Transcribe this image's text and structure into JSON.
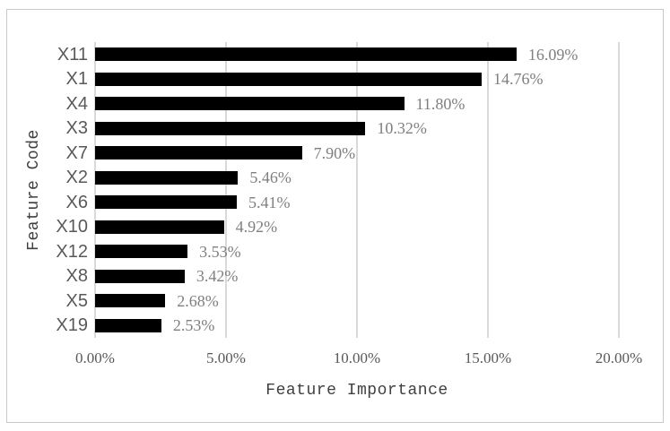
{
  "figure": {
    "background": "#ffffff",
    "border_color": "#c9c9c9"
  },
  "chart_data": {
    "type": "bar",
    "orientation": "horizontal",
    "title": "",
    "xlabel": "Feature Importance",
    "ylabel": "Feature Code",
    "categories": [
      "X11",
      "X1",
      "X4",
      "X3",
      "X7",
      "X2",
      "X6",
      "X10",
      "X12",
      "X8",
      "X5",
      "X19"
    ],
    "values": [
      16.09,
      14.76,
      11.8,
      10.32,
      7.9,
      5.46,
      5.41,
      4.92,
      3.53,
      3.42,
      2.68,
      2.53
    ],
    "data_labels": [
      "16.09%",
      "14.76%",
      "11.80%",
      "10.32%",
      "7.90%",
      "5.46%",
      "5.41%",
      "4.92%",
      "3.53%",
      "3.42%",
      "2.68%",
      "2.53%"
    ],
    "xlim": [
      0,
      20
    ],
    "x_tick_values": [
      0,
      5,
      10,
      15,
      20
    ],
    "x_tick_labels": [
      "0.00%",
      "5.00%",
      "10.00%",
      "15.00%",
      "20.00%"
    ],
    "grid": "vertical",
    "legend": "none",
    "colors": {
      "bar": "#000000",
      "gridline": "#d9d9d9",
      "category_label": "#595959",
      "tick_label": "#595959",
      "data_label": "#7f7f7f",
      "axis_title": "#3f3f3f"
    }
  }
}
